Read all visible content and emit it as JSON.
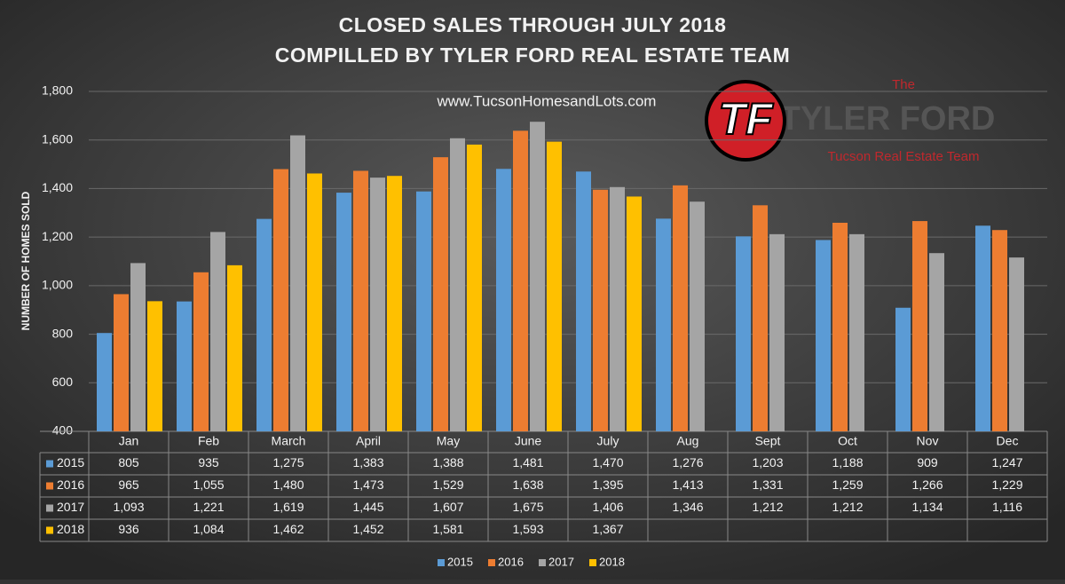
{
  "chart_data": {
    "type": "bar",
    "title": "CLOSED SALES THROUGH JULY 2018",
    "subtitle": "COMPILLED BY TYLER FORD REAL ESTATE TEAM",
    "website": "www.TucsonHomesandLots.com",
    "y_label": "NUMBER OF HOMES SOLD",
    "categories": [
      "Jan",
      "Feb",
      "March",
      "April",
      "May",
      "June",
      "July",
      "Aug",
      "Sept",
      "Oct",
      "Nov",
      "Dec"
    ],
    "series": [
      {
        "name": "2015",
        "color": "#5b9bd5",
        "values": [
          805,
          935,
          1275,
          1383,
          1388,
          1481,
          1470,
          1276,
          1203,
          1188,
          909,
          1247
        ],
        "value_labels": [
          "805",
          "935",
          "1,275",
          "1,383",
          "1,388",
          "1,481",
          "1,470",
          "1,276",
          "1,203",
          "1,188",
          "909",
          "1,247"
        ]
      },
      {
        "name": "2016",
        "color": "#ed7d31",
        "values": [
          965,
          1055,
          1480,
          1473,
          1529,
          1638,
          1395,
          1413,
          1331,
          1259,
          1266,
          1229
        ],
        "value_labels": [
          "965",
          "1,055",
          "1,480",
          "1,473",
          "1,529",
          "1,638",
          "1,395",
          "1,413",
          "1,331",
          "1,259",
          "1,266",
          "1,229"
        ]
      },
      {
        "name": "2017",
        "color": "#a5a5a5",
        "values": [
          1093,
          1221,
          1619,
          1445,
          1607,
          1675,
          1406,
          1346,
          1212,
          1212,
          1134,
          1116
        ],
        "value_labels": [
          "1,093",
          "1,221",
          "1,619",
          "1,445",
          "1,607",
          "1,675",
          "1,406",
          "1,346",
          "1,212",
          "1,212",
          "1,134",
          "1,116"
        ]
      },
      {
        "name": "2018",
        "color": "#ffc000",
        "values": [
          936,
          1084,
          1462,
          1452,
          1581,
          1593,
          1367,
          null,
          null,
          null,
          null,
          null
        ],
        "value_labels": [
          "936",
          "1,084",
          "1,462",
          "1,452",
          "1,581",
          "1,593",
          "1,367",
          null,
          null,
          null,
          null,
          null
        ]
      }
    ],
    "ylim": [
      400,
      1800
    ],
    "yticks": [
      400,
      600,
      800,
      {
        "value": 1000,
        "label": "1,000"
      },
      {
        "value": 1200,
        "label": "1,200"
      },
      {
        "value": 1400,
        "label": "1,400"
      },
      {
        "value": 1600,
        "label": "1,600"
      },
      {
        "value": 1800,
        "label": "1,800"
      }
    ],
    "grid": true,
    "legend": "bottom"
  },
  "logo": {
    "initials": "TF",
    "top": "The",
    "name": "TYLER FORD",
    "tagline": "Tucson Real Estate Team"
  }
}
